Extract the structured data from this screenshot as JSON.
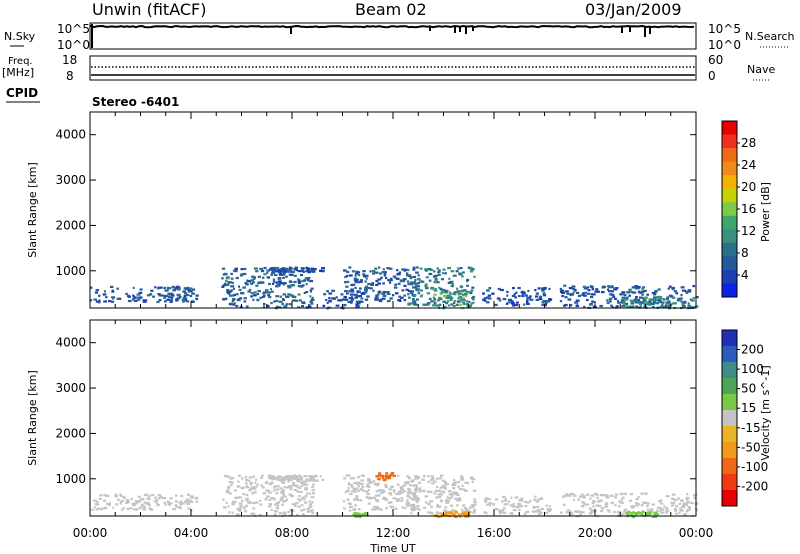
{
  "header": {
    "radar": "Unwin (fitACF)",
    "beam": "Beam 02",
    "date": "03/Jan/2009"
  },
  "panels": {
    "nsky": {
      "label": "N.Sky",
      "ticks": [
        "10^5",
        "10^0"
      ],
      "right_label": "N.Search",
      "right_ticks": [
        "10^5",
        "10^0"
      ]
    },
    "freq": {
      "label1": "Freq.",
      "label2": "[MHz]",
      "ticks": [
        "18",
        "8"
      ],
      "right_label": "Nave",
      "right_ticks": [
        "60",
        "0"
      ]
    },
    "cpid": {
      "label": "CPID",
      "value": "Stereo -6401"
    }
  },
  "power_bar": {
    "label": "Power [dB]",
    "ticks": [
      "28",
      "24",
      "20",
      "16",
      "12",
      "8",
      "4"
    ],
    "colors": [
      "#e60000",
      "#f0301c",
      "#ef6b13",
      "#f08a19",
      "#f5b100",
      "#c8d200",
      "#7fc94a",
      "#3ea66a",
      "#3a8f7d",
      "#2c6f8c",
      "#255a9a",
      "#1e3fb0",
      "#0b23e6"
    ]
  },
  "velocity_bar": {
    "label": "Velocity [m s^-1]",
    "ticks": [
      "200",
      "100",
      "50",
      "15",
      "-15",
      "-50",
      "-100",
      "-200"
    ],
    "colors": [
      "#1f2fb6",
      "#2c5bbd",
      "#3d8e8a",
      "#4ea457",
      "#78c84a",
      "#c4c4c4",
      "#ebb329",
      "#f29a1e",
      "#ef6815",
      "#f03b12",
      "#e60000"
    ]
  },
  "chart_data": [
    {
      "type": "heatmap",
      "panel": "power",
      "ylabel": "Slant Range [km]",
      "xlabel": "",
      "xlim": [
        0,
        24
      ],
      "ylim": [
        180,
        4500
      ],
      "yticks": [
        "1000",
        "2000",
        "3000",
        "4000"
      ],
      "xticks": [
        "00:00",
        "04:00",
        "08:00",
        "12:00",
        "16:00",
        "20:00",
        "00:00"
      ],
      "patches": [
        {
          "t0": 0.0,
          "t1": 4.2,
          "r0": 330,
          "r1": 680,
          "value": 6
        },
        {
          "t0": 5.2,
          "t1": 8.8,
          "r0": 200,
          "r1": 1100,
          "value": 7
        },
        {
          "t0": 7.0,
          "t1": 9.2,
          "r0": 980,
          "r1": 1100,
          "value": 5
        },
        {
          "t0": 9.2,
          "t1": 10.8,
          "r0": 180,
          "r1": 600,
          "value": 5
        },
        {
          "t0": 10.0,
          "t1": 13.0,
          "r0": 320,
          "r1": 1100,
          "value": 6
        },
        {
          "t0": 12.5,
          "t1": 15.2,
          "r0": 250,
          "r1": 1100,
          "value": 9
        },
        {
          "t0": 13.5,
          "t1": 15.0,
          "r0": 200,
          "r1": 600,
          "value": 13
        },
        {
          "t0": 15.5,
          "t1": 18.2,
          "r0": 250,
          "r1": 650,
          "value": 5
        },
        {
          "t0": 18.6,
          "t1": 24.0,
          "r0": 200,
          "r1": 700,
          "value": 6
        },
        {
          "t0": 21.0,
          "t1": 24.0,
          "r0": 200,
          "r1": 450,
          "value": 10
        }
      ]
    },
    {
      "type": "heatmap",
      "panel": "velocity",
      "ylabel": "Slant Range [km]",
      "xlabel": "Time UT",
      "xlim": [
        0,
        24
      ],
      "ylim": [
        180,
        4500
      ],
      "yticks": [
        "1000",
        "2000",
        "3000",
        "4000"
      ],
      "xticks": [
        "00:00",
        "04:00",
        "08:00",
        "12:00",
        "16:00",
        "20:00",
        "00:00"
      ],
      "patches": [
        {
          "t0": 0.0,
          "t1": 4.2,
          "r0": 330,
          "r1": 680,
          "value": 0
        },
        {
          "t0": 5.2,
          "t1": 8.8,
          "r0": 200,
          "r1": 1100,
          "value": -5
        },
        {
          "t0": 7.0,
          "t1": 9.2,
          "r0": 980,
          "r1": 1100,
          "value": 0
        },
        {
          "t0": 10.0,
          "t1": 13.0,
          "r0": 320,
          "r1": 1100,
          "value": 0
        },
        {
          "t0": 12.5,
          "t1": 15.2,
          "r0": 250,
          "r1": 1100,
          "value": -5
        },
        {
          "t0": 11.3,
          "t1": 12.0,
          "r0": 1000,
          "r1": 1150,
          "value": -120
        },
        {
          "t0": 13.6,
          "t1": 15.0,
          "r0": 180,
          "r1": 300,
          "value": -60
        },
        {
          "t0": 10.3,
          "t1": 11.0,
          "r0": 180,
          "r1": 280,
          "value": 30
        },
        {
          "t0": 15.5,
          "t1": 18.2,
          "r0": 250,
          "r1": 650,
          "value": 0
        },
        {
          "t0": 18.6,
          "t1": 24.0,
          "r0": 200,
          "r1": 700,
          "value": 0
        },
        {
          "t0": 21.2,
          "t1": 22.4,
          "r0": 180,
          "r1": 300,
          "value": 30
        }
      ]
    }
  ]
}
